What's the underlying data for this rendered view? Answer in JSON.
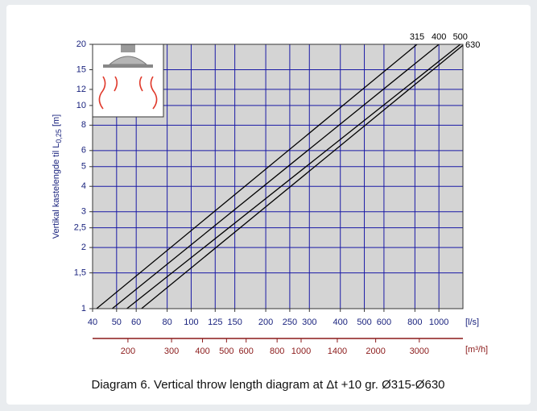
{
  "chart_data": {
    "type": "line",
    "y_label": {
      "text": "Vertikal kastelengde til L",
      "sub": "0,25",
      "unit": " [m]"
    },
    "x_label": "[l/s]",
    "x2_label": "[m³/h]",
    "caption": "Diagram 6. Vertical throw length diagram at Δt +10 gr. Ø315-Ø630",
    "xlog": true,
    "ylog": true,
    "grid": true,
    "xlim": [
      40,
      1250
    ],
    "ylim": [
      1,
      20
    ],
    "x2lim": [
      144,
      4500
    ],
    "xticks": [
      40,
      50,
      60,
      80,
      100,
      125,
      150,
      200,
      250,
      300,
      400,
      500,
      600,
      800,
      1000
    ],
    "x2ticks": [
      200,
      300,
      400,
      500,
      600,
      800,
      1000,
      1400,
      2000,
      3000
    ],
    "yticks": [
      1,
      {
        "value": 1.5,
        "label": "1,5"
      },
      2,
      {
        "value": 2.5,
        "label": "2,5"
      },
      3,
      4,
      5,
      6,
      8,
      10,
      12,
      15,
      20
    ],
    "series": [
      {
        "name": "315",
        "color": "#000000",
        "x": [
          41.5,
          816
        ],
        "values": [
          1,
          20
        ]
      },
      {
        "name": "400",
        "color": "#000000",
        "x": [
          48,
          1000
        ],
        "values": [
          1,
          20
        ]
      },
      {
        "name": "500",
        "color": "#000000",
        "x": [
          55,
          1220
        ],
        "values": [
          1,
          20
        ]
      },
      {
        "name": "630",
        "color": "#000000",
        "x": [
          63,
          1250
        ],
        "values": [
          1,
          19.8
        ]
      }
    ]
  }
}
